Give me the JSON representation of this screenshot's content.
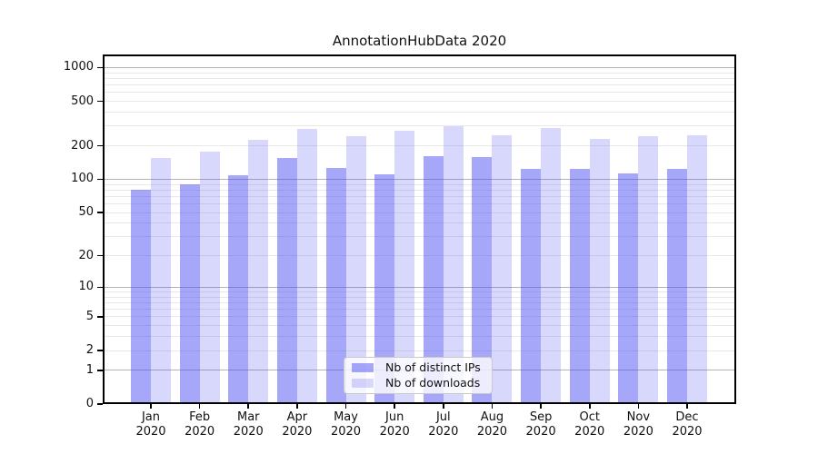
{
  "chart_data": {
    "type": "bar",
    "title": "AnnotationHubData 2020",
    "categories": [
      "Jan 2020",
      "Feb 2020",
      "Mar 2020",
      "Apr 2020",
      "May 2020",
      "Jun 2020",
      "Jul 2020",
      "Aug 2020",
      "Sep 2020",
      "Oct 2020",
      "Nov 2020",
      "Dec 2020"
    ],
    "series": [
      {
        "name": "Nb of distinct IPs",
        "color": "rgba(72,72,242,0.48)",
        "values": [
          80,
          90,
          108,
          155,
          126,
          110,
          162,
          159,
          123,
          125,
          112,
          125
        ]
      },
      {
        "name": "Nb of downloads",
        "color": "rgba(72,72,242,0.21)",
        "values": [
          154,
          178,
          225,
          281,
          244,
          271,
          298,
          247,
          290,
          229,
          244,
          250
        ]
      }
    ],
    "xlabel": "",
    "ylabel": "",
    "yscale": "log10(1+x)",
    "yticks": [
      0,
      1,
      2,
      5,
      10,
      20,
      50,
      100,
      200,
      500,
      1000
    ],
    "ylim": [
      0,
      1300
    ],
    "grid": {
      "major_at": [
        1,
        10,
        100,
        1000
      ],
      "major_color": "#b3b3b3",
      "minor_color": "#e8e8e8"
    },
    "legend_position": "lower center",
    "frame_color": "#000000",
    "background_color": "#ffffff"
  }
}
